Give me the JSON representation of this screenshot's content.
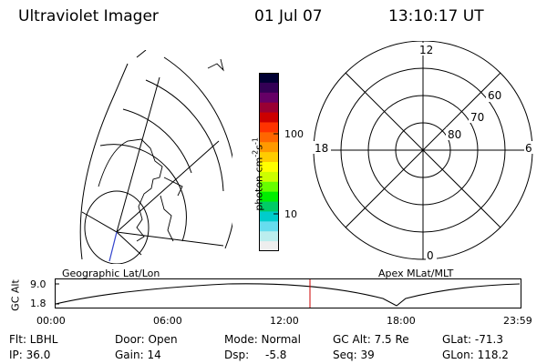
{
  "header": {
    "instrument": "Ultraviolet Imager",
    "date": "01 Jul 07",
    "time": "13:10:17 UT"
  },
  "colorbar": {
    "unit_label": "photon cm",
    "unit_exp1": "-2",
    "unit_mid": "s",
    "unit_exp2": "-1",
    "tick_100": "100",
    "tick_10": "10",
    "colors": [
      "#000033",
      "#330055",
      "#660066",
      "#990033",
      "#cc0000",
      "#ff3300",
      "#ff6600",
      "#ff9900",
      "#ffcc00",
      "#ffff00",
      "#ccff00",
      "#66ff00",
      "#00ee00",
      "#00cc66",
      "#00cccc",
      "#66ddee",
      "#bbeeee",
      "#eeeeee"
    ]
  },
  "polar_plot": {
    "mlt_12": "12",
    "mlt_18": "18",
    "mlt_6": "6",
    "mlt_0": "0",
    "lat_60": "60",
    "lat_70": "70",
    "lat_80": "80"
  },
  "orbit_panel": {
    "ylabel": "GC Alt",
    "y_high": "9.0",
    "y_low": "1.8",
    "left_title": "Geographic Lat/Lon",
    "right_title": "Apex MLat/MLT",
    "x_ticks": [
      "00:00",
      "06:00",
      "12:00",
      "18:00",
      "23:59"
    ],
    "current_marker_color": "#cc0000"
  },
  "status": {
    "flt": "Flt: LBHL",
    "ip": "IP: 36.0",
    "door": "Door: Open",
    "gain": "Gain: 14",
    "mode": "Mode: Normal",
    "dsp_label": "Dsp:",
    "dsp_value": "-5.8",
    "gc_alt": "GC Alt: 7.5 Re",
    "seq": "Seq: 39",
    "glat": "GLat: -71.3",
    "glon": "GLon: 118.2"
  }
}
